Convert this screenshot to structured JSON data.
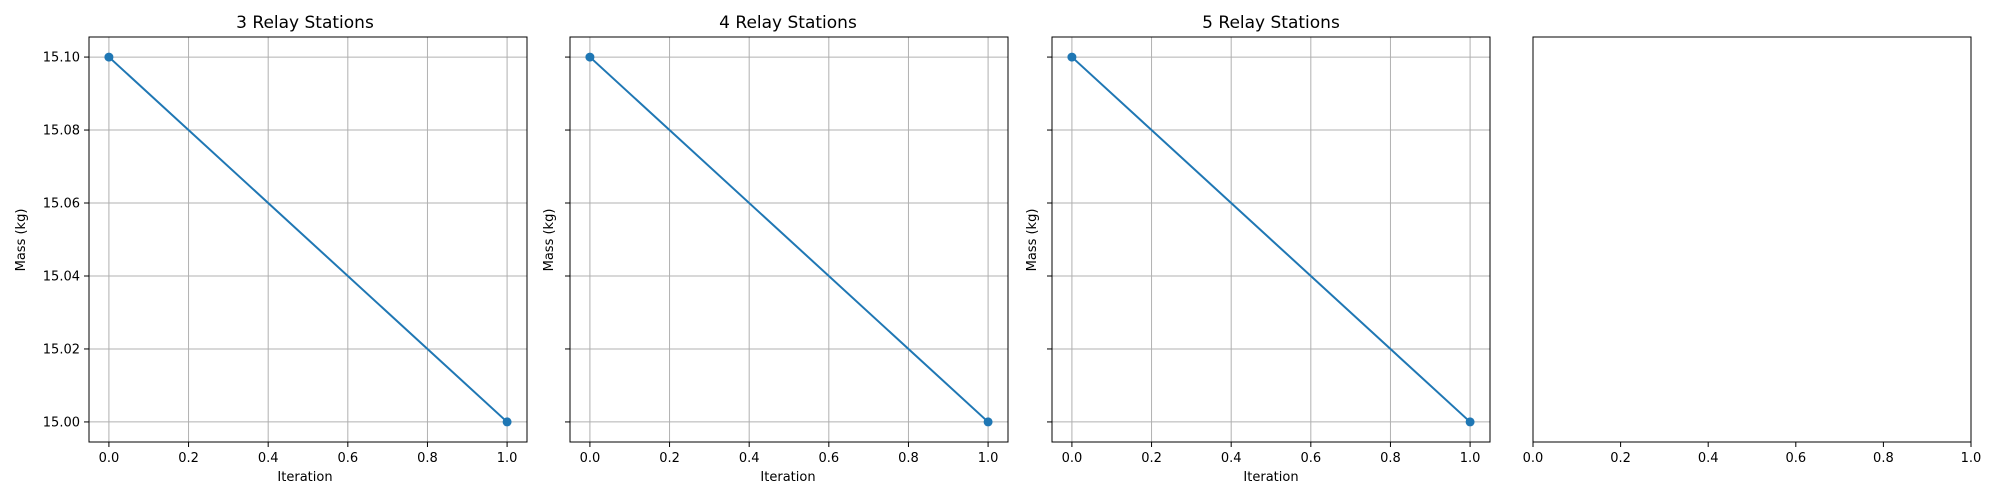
{
  "colors": {
    "line": "#1f77b4",
    "grid": "#b0b0b0",
    "frame": "#000000",
    "background": "#ffffff"
  },
  "chart_data": [
    {
      "type": "line",
      "title": "3 Relay Stations",
      "xlabel": "Iteration",
      "ylabel": "Mass (kg)",
      "x": [
        0,
        1
      ],
      "series": [
        {
          "values": [
            15.1,
            15.0
          ]
        }
      ],
      "markers": true,
      "xlim": [
        -0.05,
        1.05
      ],
      "ylim": [
        14.9945,
        15.1055
      ],
      "xticks": [
        "0.0",
        "0.2",
        "0.4",
        "0.6",
        "0.8",
        "1.0"
      ],
      "yticks": [
        "15.00",
        "15.02",
        "15.04",
        "15.06",
        "15.08",
        "15.10"
      ],
      "show_ytick_labels": true,
      "grid": true
    },
    {
      "type": "line",
      "title": "4 Relay Stations",
      "xlabel": "Iteration",
      "ylabel": "Mass (kg)",
      "x": [
        0,
        1
      ],
      "series": [
        {
          "values": [
            15.1,
            15.0
          ]
        }
      ],
      "markers": true,
      "xlim": [
        -0.05,
        1.05
      ],
      "ylim": [
        14.9945,
        15.1055
      ],
      "xticks": [
        "0.0",
        "0.2",
        "0.4",
        "0.6",
        "0.8",
        "1.0"
      ],
      "yticks": [
        "15.00",
        "15.02",
        "15.04",
        "15.06",
        "15.08",
        "15.10"
      ],
      "show_ytick_labels": false,
      "grid": true
    },
    {
      "type": "line",
      "title": "5 Relay Stations",
      "xlabel": "Iteration",
      "ylabel": "Mass (kg)",
      "x": [
        0,
        1
      ],
      "series": [
        {
          "values": [
            15.1,
            15.0
          ]
        }
      ],
      "markers": true,
      "xlim": [
        -0.05,
        1.05
      ],
      "ylim": [
        14.9945,
        15.1055
      ],
      "xticks": [
        "0.0",
        "0.2",
        "0.4",
        "0.6",
        "0.8",
        "1.0"
      ],
      "yticks": [
        "15.00",
        "15.02",
        "15.04",
        "15.06",
        "15.08",
        "15.10"
      ],
      "show_ytick_labels": false,
      "grid": true
    },
    {
      "type": "line",
      "title": "",
      "xlabel": "",
      "ylabel": "",
      "x": [],
      "series": [],
      "markers": false,
      "xlim": [
        0,
        1
      ],
      "ylim": [
        0,
        1
      ],
      "xticks": [
        "0.0",
        "0.2",
        "0.4",
        "0.6",
        "0.8",
        "1.0"
      ],
      "yticks": [],
      "show_ytick_labels": false,
      "grid": false
    }
  ]
}
